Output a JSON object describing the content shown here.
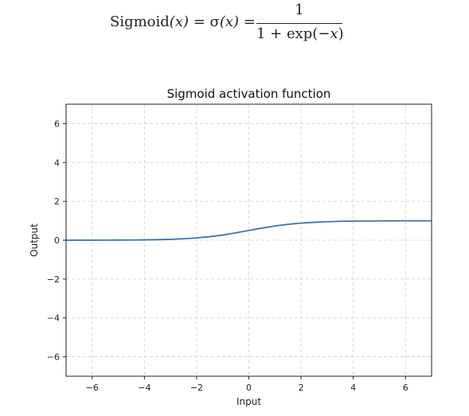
{
  "formula": {
    "lhs_name": "Sigmoid",
    "lhs_var": "(x)",
    "eq1": " = σ",
    "sigma_var": "(x)",
    "eq2": " =",
    "numerator": "1",
    "den_text": "1 + exp(−",
    "den_var": "x",
    "den_close": ")"
  },
  "chart_data": {
    "type": "line",
    "title": "Sigmoid activation function",
    "xlabel": "Input",
    "ylabel": "Output",
    "xlim": [
      -7,
      7
    ],
    "ylim": [
      -7,
      7
    ],
    "xticks": [
      -6,
      -4,
      -2,
      0,
      2,
      4,
      6
    ],
    "yticks": [
      -6,
      -4,
      -2,
      0,
      2,
      4,
      6
    ],
    "tick_labels_x": [
      "−6",
      "−4",
      "−2",
      "0",
      "2",
      "4",
      "6"
    ],
    "tick_labels_y": [
      "−6",
      "−4",
      "−2",
      "0",
      "2",
      "4",
      "6"
    ],
    "grid": true,
    "line_color": "#3b75af",
    "series": [
      {
        "x": [
          -7,
          -6.5,
          -6,
          -5.5,
          -5,
          -4.5,
          -4,
          -3.5,
          -3,
          -2.5,
          -2,
          -1.5,
          -1,
          -0.5,
          0,
          0.5,
          1,
          1.5,
          2,
          2.5,
          3,
          3.5,
          4,
          4.5,
          5,
          5.5,
          6,
          6.5,
          7
        ],
        "y": [
          0.001,
          0.0015,
          0.0025,
          0.004,
          0.007,
          0.011,
          0.018,
          0.029,
          0.047,
          0.076,
          0.119,
          0.182,
          0.269,
          0.378,
          0.5,
          0.622,
          0.731,
          0.818,
          0.881,
          0.924,
          0.953,
          0.971,
          0.982,
          0.989,
          0.993,
          0.996,
          0.9975,
          0.9985,
          0.999
        ]
      }
    ]
  }
}
